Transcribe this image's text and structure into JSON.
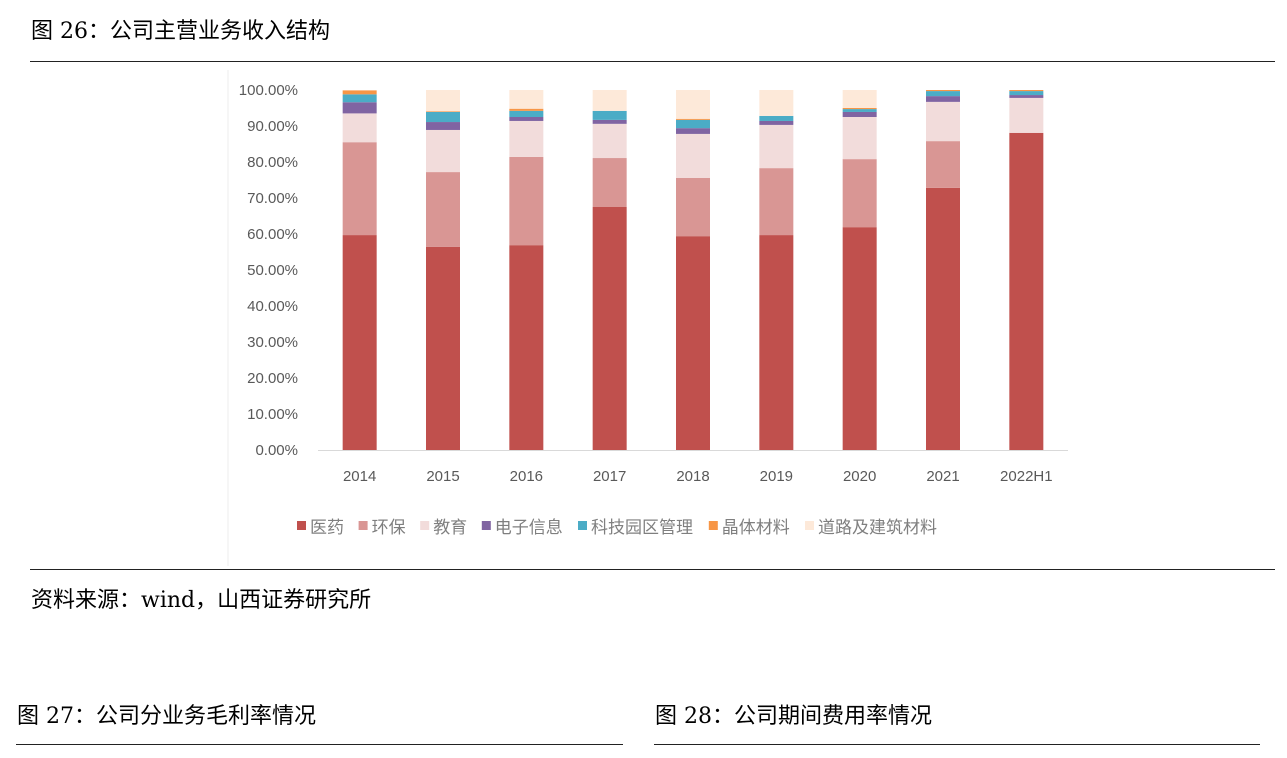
{
  "figure26": {
    "title": "图 26：公司主营业务收入结构",
    "source": "资料来源：wind，山西证券研究所"
  },
  "figure27": {
    "title": "图 27：公司分业务毛利率情况"
  },
  "figure28": {
    "title": "图 28：公司期间费用率情况"
  },
  "chart_data": {
    "type": "bar",
    "stacked": true,
    "categories": [
      "2014",
      "2015",
      "2016",
      "2017",
      "2018",
      "2019",
      "2020",
      "2021",
      "2022H1"
    ],
    "ylim": [
      0,
      100
    ],
    "yticks": [
      "0.00%",
      "10.00%",
      "20.00%",
      "30.00%",
      "40.00%",
      "50.00%",
      "60.00%",
      "70.00%",
      "80.00%",
      "90.00%",
      "100.00%"
    ],
    "grid": false,
    "legend_position": "bottom",
    "series": [
      {
        "name": "医药",
        "color": "#c0504d",
        "values": [
          59.7,
          56.4,
          56.9,
          67.5,
          59.4,
          59.7,
          61.9,
          72.8,
          88.1
        ]
      },
      {
        "name": "环保",
        "color": "#d99694",
        "values": [
          25.8,
          20.8,
          24.5,
          13.6,
          16.2,
          18.6,
          18.9,
          13.0,
          0.0
        ]
      },
      {
        "name": "教育",
        "color": "#f2dcdb",
        "values": [
          8.0,
          11.7,
          10.0,
          9.5,
          12.2,
          12.0,
          11.7,
          10.9,
          9.7
        ]
      },
      {
        "name": "电子信息",
        "color": "#8064a2",
        "values": [
          3.1,
          2.2,
          1.1,
          1.1,
          1.6,
          1.1,
          1.4,
          1.6,
          0.8
        ]
      },
      {
        "name": "科技园区管理",
        "color": "#4bacc6",
        "values": [
          2.2,
          2.8,
          1.7,
          2.5,
          2.3,
          1.4,
          0.8,
          1.4,
          1.1
        ]
      },
      {
        "name": "晶体材料",
        "color": "#f79646",
        "values": [
          1.1,
          0.2,
          0.6,
          0.0,
          0.3,
          0.0,
          0.3,
          0.3,
          0.3
        ]
      },
      {
        "name": "道路及建筑材料",
        "color": "#fde9d9",
        "values": [
          0.1,
          5.9,
          5.2,
          5.8,
          8.0,
          7.2,
          5.0,
          0.0,
          0.0
        ]
      }
    ]
  }
}
